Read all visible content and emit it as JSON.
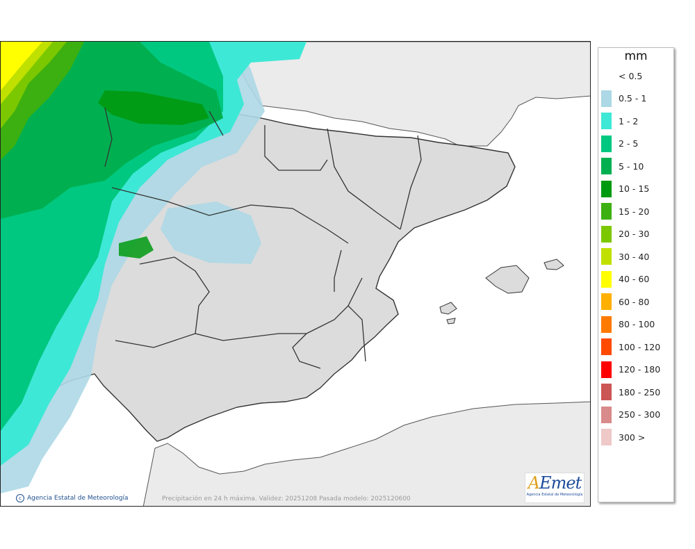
{
  "legend": {
    "unit": "mm",
    "items": [
      {
        "label": "< 0.5",
        "color": ""
      },
      {
        "label": "0.5 - 1",
        "color": "#add8e6"
      },
      {
        "label": "1 - 2",
        "color": "#3ee8d6"
      },
      {
        "label": "2 - 5",
        "color": "#00c880"
      },
      {
        "label": "5 - 10",
        "color": "#00b050"
      },
      {
        "label": "10 - 15",
        "color": "#009a10"
      },
      {
        "label": "15 - 20",
        "color": "#3cb010"
      },
      {
        "label": "20 - 30",
        "color": "#7cc800"
      },
      {
        "label": "30 - 40",
        "color": "#c0e000"
      },
      {
        "label": "40 - 60",
        "color": "#ffff00"
      },
      {
        "label": "60 - 80",
        "color": "#ffb000"
      },
      {
        "label": "80 - 100",
        "color": "#ff7a00"
      },
      {
        "label": "100 - 120",
        "color": "#ff4a00"
      },
      {
        "label": "120 - 180",
        "color": "#ff0000"
      },
      {
        "label": "180 - 250",
        "color": "#cc5555"
      },
      {
        "label": "250 - 300",
        "color": "#d98a8a"
      },
      {
        "label": "300 >",
        "color": "#efc8c8"
      }
    ]
  },
  "map": {
    "credit": "Agencia Estatal de Meteorología",
    "caption": "Precipitación en 24 h máxima. Validez: 20251208 Pasada modelo: 2025120600",
    "logo_text": "AEmet",
    "logo_subtext": "Agencia Estatal de Meteorología",
    "colors": {
      "land": "#dcdcdc",
      "sea": "#ffffff",
      "foreign_land": "#ebebeb",
      "border": "#333333"
    }
  }
}
